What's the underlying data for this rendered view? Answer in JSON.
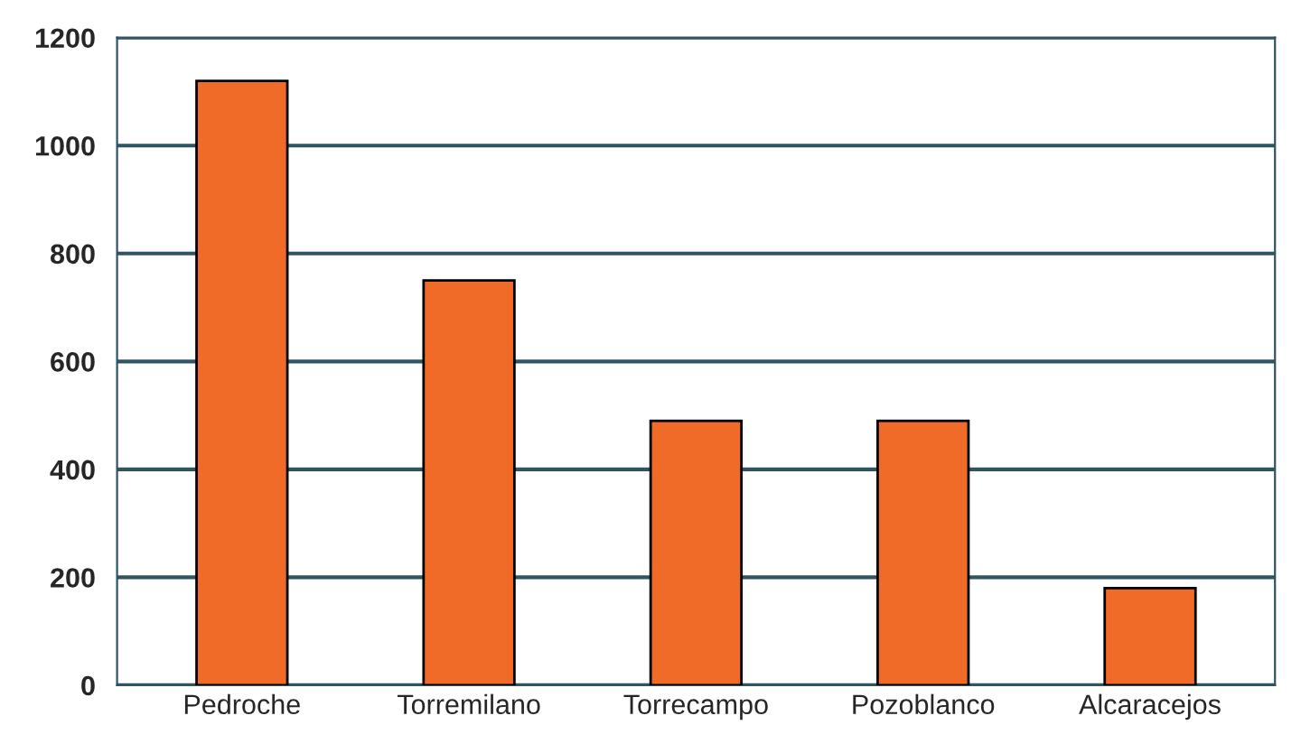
{
  "chart_data": {
    "type": "bar",
    "categories": [
      "Pedroche",
      "Torremilano",
      "Torrecampo",
      "Pozoblanco",
      "Alcaracejos"
    ],
    "values": [
      1120,
      750,
      490,
      490,
      180
    ],
    "color": "#f06a28",
    "ylim": [
      0,
      1200
    ],
    "yticks": [
      0,
      200,
      400,
      600,
      800,
      1000,
      1200
    ],
    "grid": "y"
  }
}
